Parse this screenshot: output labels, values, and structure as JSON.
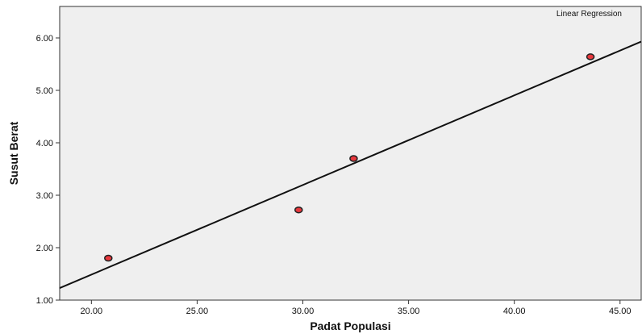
{
  "chart_data": {
    "type": "scatter",
    "xlabel": "Padat Populasi",
    "ylabel": "Susut Berat",
    "xlim": [
      18.5,
      46.0
    ],
    "ylim": [
      1.0,
      6.6
    ],
    "x_ticks": [
      20.0,
      25.0,
      30.0,
      35.0,
      40.0,
      45.0
    ],
    "x_tick_labels": [
      "20.00",
      "25.00",
      "30.00",
      "35.00",
      "40.00",
      "45.00"
    ],
    "y_ticks": [
      1.0,
      2.0,
      3.0,
      4.0,
      5.0,
      6.0
    ],
    "y_tick_labels": [
      "1.00",
      "2.00",
      "3.00",
      "4.00",
      "5.00",
      "6.00"
    ],
    "points": [
      {
        "x": 20.8,
        "y": 1.8
      },
      {
        "x": 29.8,
        "y": 2.72
      },
      {
        "x": 32.4,
        "y": 3.7
      },
      {
        "x": 43.6,
        "y": 5.64
      }
    ],
    "fit_line": {
      "label": "Linear Regression",
      "x": [
        18.5,
        46.0
      ],
      "y": [
        1.23,
        5.93
      ]
    },
    "grid": false,
    "legend_position": "top-right",
    "colors": {
      "plot_background": "#efefef",
      "point_fill": "#e8383d",
      "point_stroke": "#222222",
      "line": "#111111"
    }
  }
}
